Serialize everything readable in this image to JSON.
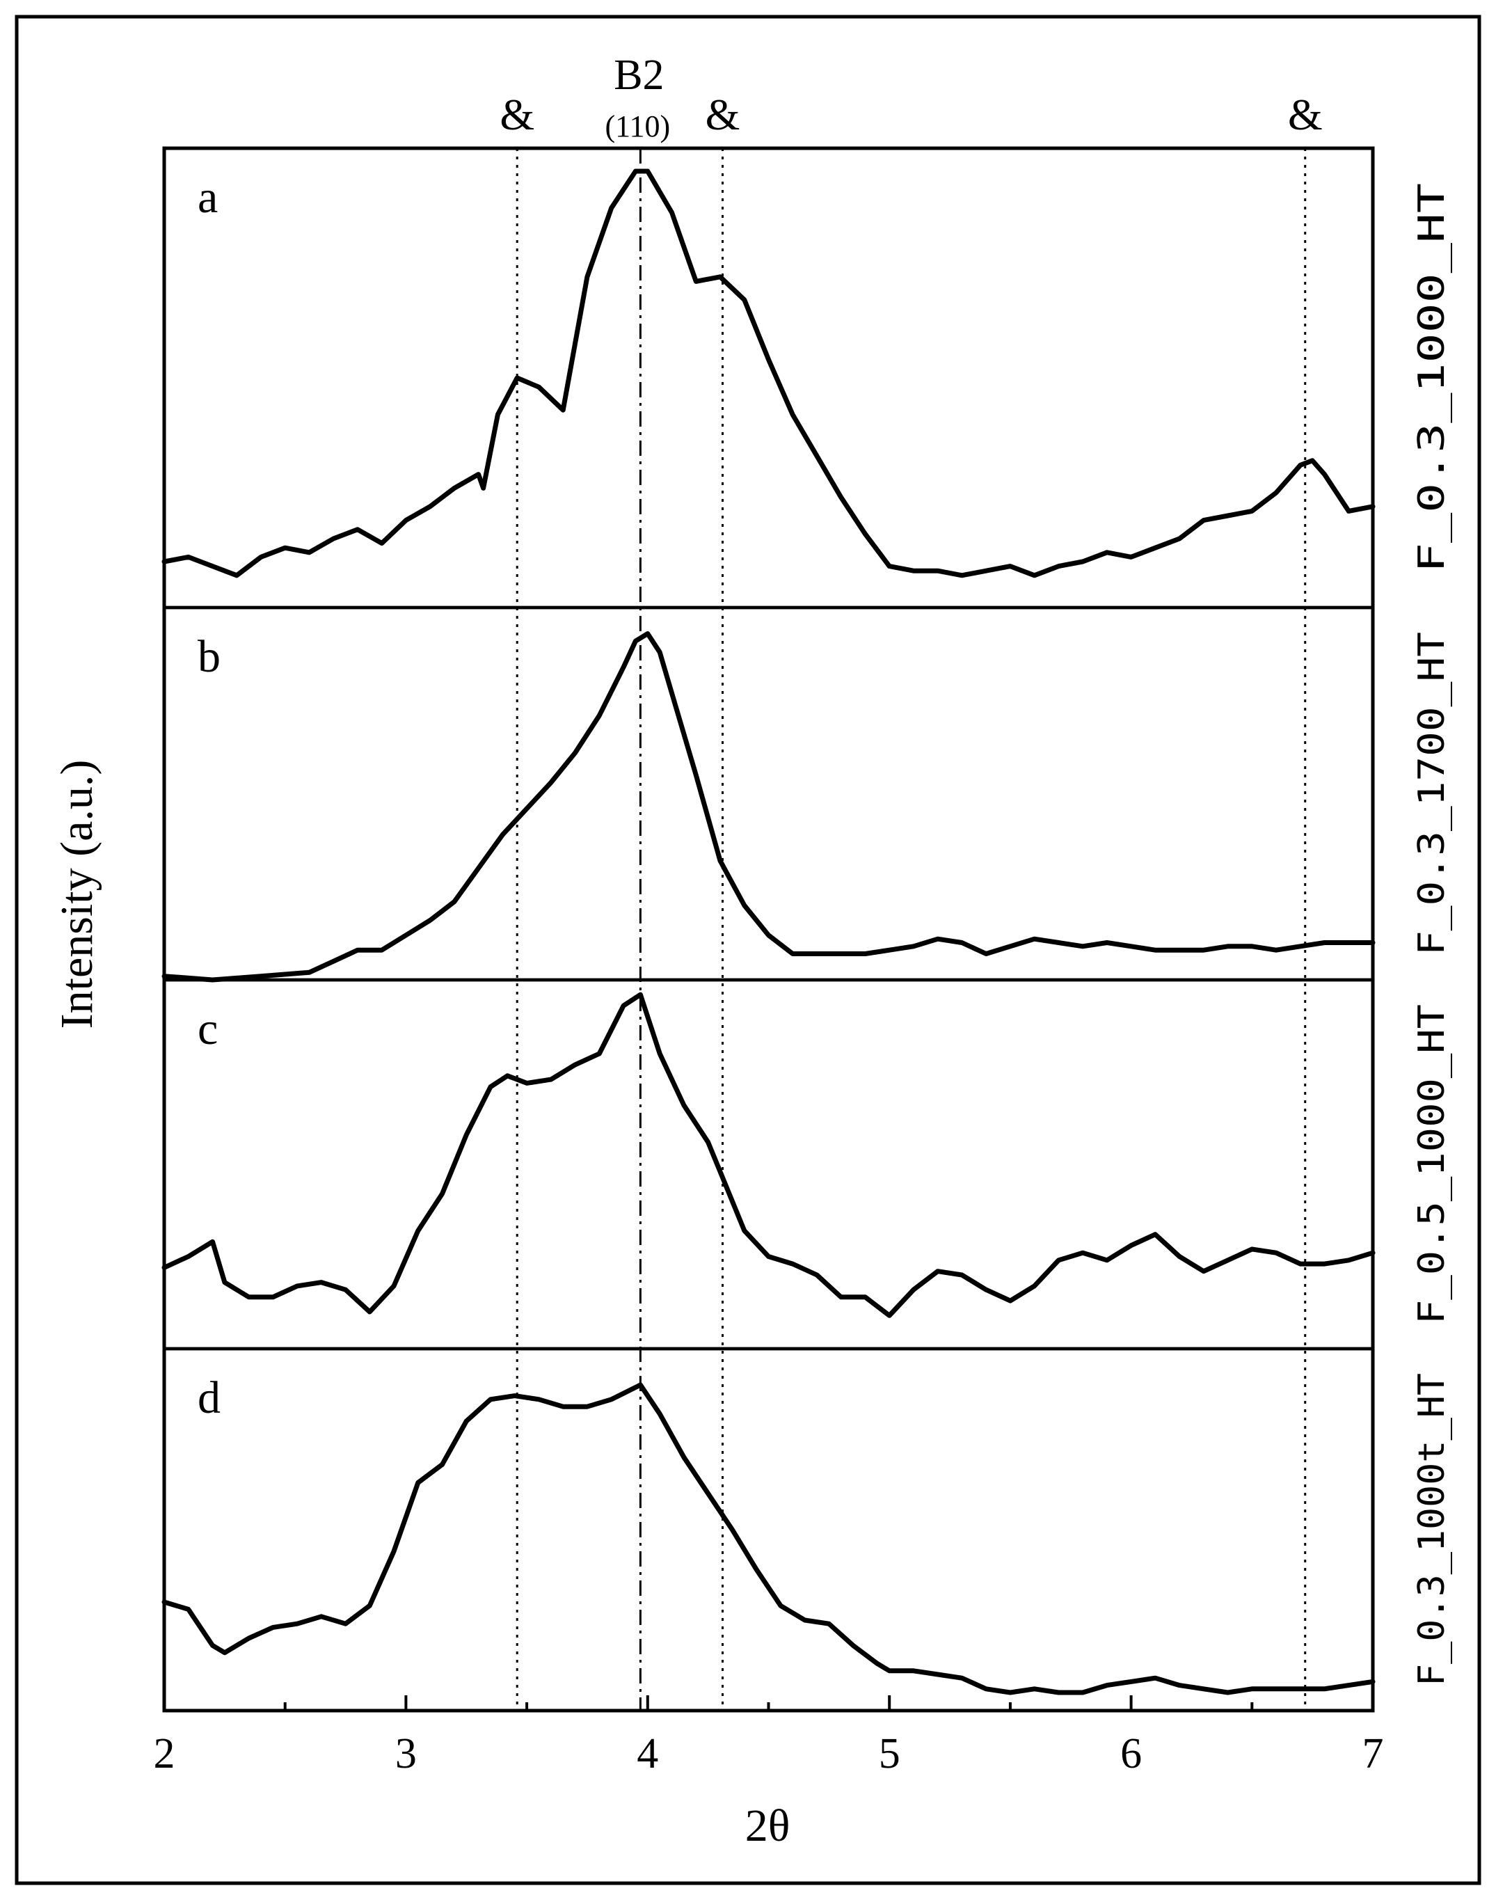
{
  "chart_data": {
    "type": "line",
    "xlabel": "2θ",
    "ylabel": "Intensity (a.u.)",
    "xlim": [
      2,
      7
    ],
    "x_ticks": [
      2,
      3,
      4,
      5,
      6,
      7
    ],
    "x_tick_labels": [
      "2",
      "3",
      "4",
      "5",
      "6",
      "7"
    ],
    "y_ticks_shown": false,
    "grid": false,
    "stacked_panels": true,
    "reference_lines": [
      {
        "x": 3.97,
        "style": "dash-dot",
        "label": "B2",
        "sublabel": "(110)"
      },
      {
        "x": 3.46,
        "style": "dotted",
        "label": "&"
      },
      {
        "x": 4.31,
        "style": "dotted",
        "label": "&"
      },
      {
        "x": 6.72,
        "style": "dotted",
        "label": "&"
      }
    ],
    "panels": [
      {
        "letter": "a",
        "sample": "F_0.3_1000_HT",
        "ylim": [
          0,
          1
        ],
        "x": [
          2.0,
          2.1,
          2.2,
          2.3,
          2.4,
          2.5,
          2.6,
          2.7,
          2.8,
          2.9,
          3.0,
          3.1,
          3.2,
          3.3,
          3.32,
          3.38,
          3.46,
          3.55,
          3.65,
          3.75,
          3.85,
          3.95,
          4.0,
          4.1,
          4.2,
          4.3,
          4.4,
          4.5,
          4.6,
          4.7,
          4.8,
          4.9,
          5.0,
          5.1,
          5.2,
          5.3,
          5.4,
          5.5,
          5.6,
          5.7,
          5.8,
          5.9,
          6.0,
          6.1,
          6.2,
          6.3,
          6.4,
          6.5,
          6.6,
          6.7,
          6.75,
          6.8,
          6.9,
          7.0
        ],
        "y": [
          0.1,
          0.11,
          0.09,
          0.07,
          0.11,
          0.13,
          0.12,
          0.15,
          0.17,
          0.14,
          0.19,
          0.22,
          0.26,
          0.29,
          0.26,
          0.42,
          0.5,
          0.48,
          0.43,
          0.72,
          0.87,
          0.95,
          0.95,
          0.86,
          0.71,
          0.72,
          0.67,
          0.54,
          0.42,
          0.33,
          0.24,
          0.16,
          0.09,
          0.08,
          0.08,
          0.07,
          0.08,
          0.09,
          0.07,
          0.09,
          0.1,
          0.12,
          0.11,
          0.13,
          0.15,
          0.19,
          0.2,
          0.21,
          0.25,
          0.31,
          0.32,
          0.29,
          0.21,
          0.22
        ]
      },
      {
        "letter": "b",
        "sample": "F_0.3_1700_HT",
        "ylim": [
          0,
          1
        ],
        "x": [
          2.0,
          2.2,
          2.4,
          2.6,
          2.7,
          2.8,
          2.9,
          3.0,
          3.1,
          3.2,
          3.3,
          3.4,
          3.5,
          3.6,
          3.7,
          3.8,
          3.9,
          3.95,
          4.0,
          4.05,
          4.1,
          4.2,
          4.3,
          4.4,
          4.5,
          4.6,
          4.7,
          4.8,
          4.9,
          5.0,
          5.1,
          5.2,
          5.3,
          5.4,
          5.5,
          5.6,
          5.7,
          5.8,
          5.9,
          6.0,
          6.1,
          6.2,
          6.3,
          6.4,
          6.5,
          6.6,
          6.7,
          6.8,
          6.9,
          7.0
        ],
        "y": [
          0.01,
          0.0,
          0.01,
          0.02,
          0.05,
          0.08,
          0.08,
          0.12,
          0.16,
          0.21,
          0.3,
          0.39,
          0.46,
          0.53,
          0.61,
          0.71,
          0.84,
          0.91,
          0.93,
          0.88,
          0.77,
          0.55,
          0.32,
          0.2,
          0.12,
          0.07,
          0.07,
          0.07,
          0.07,
          0.08,
          0.09,
          0.11,
          0.1,
          0.07,
          0.09,
          0.11,
          0.1,
          0.09,
          0.1,
          0.09,
          0.08,
          0.08,
          0.08,
          0.09,
          0.09,
          0.08,
          0.09,
          0.1,
          0.1,
          0.1
        ]
      },
      {
        "letter": "c",
        "sample": "F_0.5_1000_HT",
        "ylim": [
          0,
          1
        ],
        "x": [
          2.0,
          2.1,
          2.2,
          2.25,
          2.35,
          2.45,
          2.55,
          2.65,
          2.75,
          2.85,
          2.95,
          3.05,
          3.15,
          3.25,
          3.35,
          3.42,
          3.5,
          3.6,
          3.7,
          3.8,
          3.9,
          3.97,
          4.05,
          4.15,
          4.25,
          4.3,
          4.4,
          4.5,
          4.6,
          4.7,
          4.8,
          4.9,
          5.0,
          5.1,
          5.2,
          5.3,
          5.4,
          5.5,
          5.6,
          5.7,
          5.8,
          5.9,
          6.0,
          6.1,
          6.2,
          6.3,
          6.4,
          6.5,
          6.6,
          6.7,
          6.8,
          6.9,
          7.0
        ],
        "y": [
          0.22,
          0.25,
          0.29,
          0.18,
          0.14,
          0.14,
          0.17,
          0.18,
          0.16,
          0.1,
          0.17,
          0.32,
          0.42,
          0.58,
          0.71,
          0.74,
          0.72,
          0.73,
          0.77,
          0.8,
          0.93,
          0.96,
          0.8,
          0.66,
          0.56,
          0.48,
          0.32,
          0.25,
          0.23,
          0.2,
          0.14,
          0.14,
          0.09,
          0.16,
          0.21,
          0.2,
          0.16,
          0.13,
          0.17,
          0.24,
          0.26,
          0.24,
          0.28,
          0.31,
          0.25,
          0.21,
          0.24,
          0.27,
          0.26,
          0.23,
          0.23,
          0.24,
          0.26
        ]
      },
      {
        "letter": "d",
        "sample": "F_0.3_1000t_HT",
        "ylim": [
          0,
          1
        ],
        "x": [
          2.0,
          2.1,
          2.2,
          2.25,
          2.35,
          2.45,
          2.55,
          2.65,
          2.75,
          2.85,
          2.95,
          3.05,
          3.15,
          3.25,
          3.35,
          3.45,
          3.55,
          3.65,
          3.75,
          3.85,
          3.97,
          4.05,
          4.15,
          4.25,
          4.35,
          4.45,
          4.55,
          4.65,
          4.75,
          4.85,
          4.95,
          5.0,
          5.1,
          5.2,
          5.3,
          5.4,
          5.5,
          5.6,
          5.7,
          5.8,
          5.9,
          6.0,
          6.1,
          6.2,
          6.3,
          6.4,
          6.5,
          6.6,
          6.7,
          6.8,
          6.9,
          7.0
        ],
        "y": [
          0.3,
          0.28,
          0.18,
          0.16,
          0.2,
          0.23,
          0.24,
          0.26,
          0.24,
          0.29,
          0.44,
          0.63,
          0.68,
          0.8,
          0.86,
          0.87,
          0.86,
          0.84,
          0.84,
          0.86,
          0.9,
          0.82,
          0.7,
          0.6,
          0.5,
          0.39,
          0.29,
          0.25,
          0.24,
          0.18,
          0.13,
          0.11,
          0.11,
          0.1,
          0.09,
          0.06,
          0.05,
          0.06,
          0.05,
          0.05,
          0.07,
          0.08,
          0.09,
          0.07,
          0.06,
          0.05,
          0.06,
          0.06,
          0.06,
          0.06,
          0.07,
          0.08
        ]
      }
    ]
  }
}
